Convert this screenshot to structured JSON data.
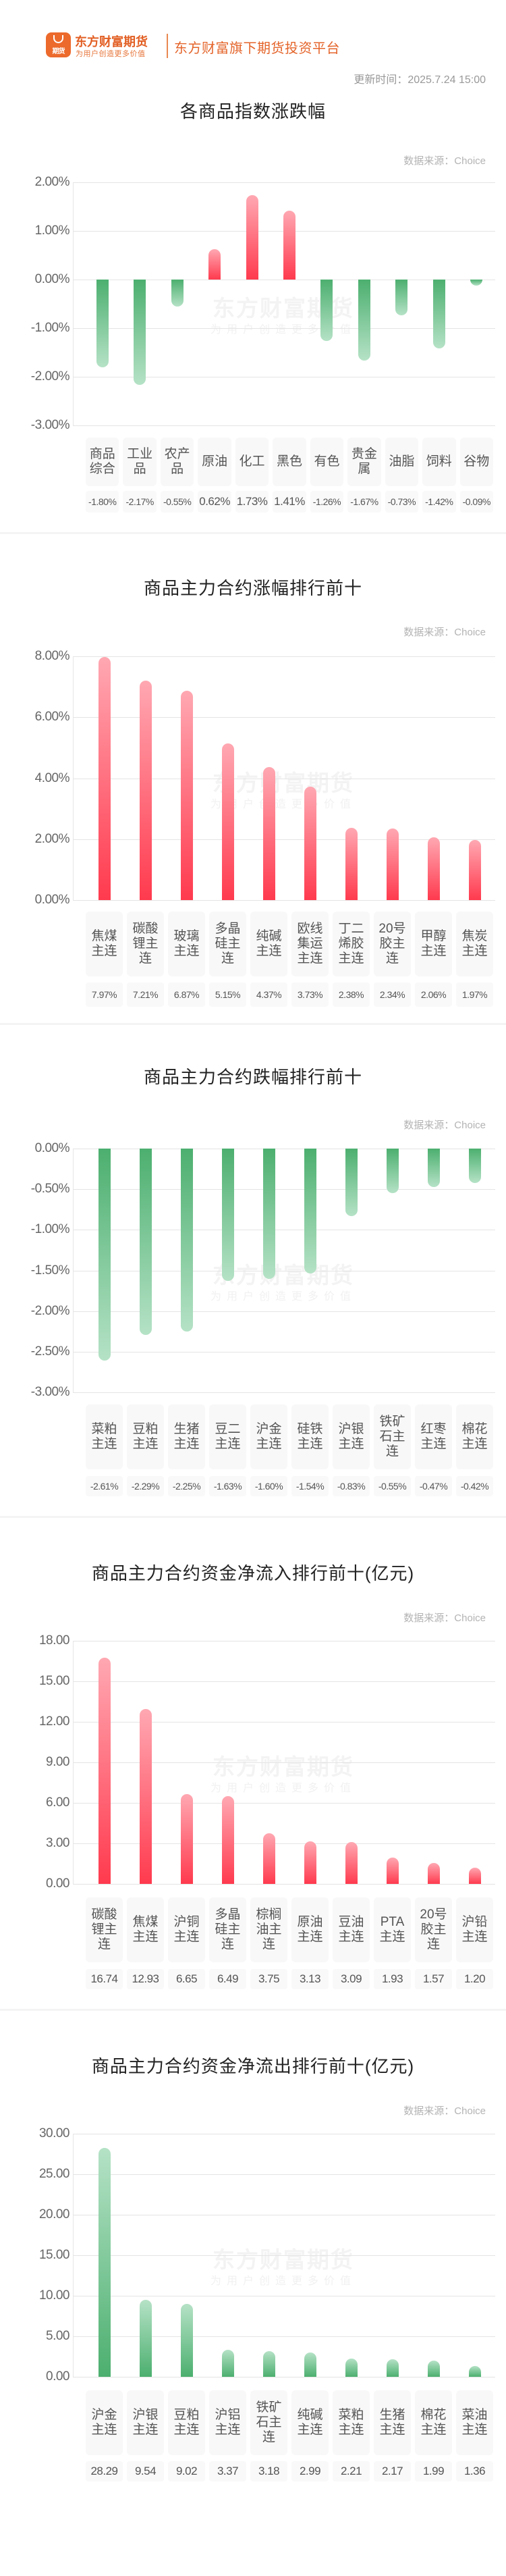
{
  "header": {
    "logo_text": "期货",
    "brand_name": "东方财富期货",
    "brand_slogan": "为用户创造更多价值",
    "tagline": "东方财富旗下期货投资平台",
    "update_time": "更新时间：2025.7.24 15:00"
  },
  "watermark": {
    "main": "东方财富期货",
    "sub": "为用户创造更多价值"
  },
  "colors": {
    "brand_orange": "#e25f24",
    "up_red": "#ff3a4e",
    "down_green": "#4caf6f"
  },
  "chart_data": [
    {
      "type": "bar",
      "title": "各商品指数涨跌幅",
      "source": "数据来源：Choice",
      "categories": [
        "商品综合",
        "工业品",
        "农产品",
        "原油",
        "化工",
        "黑色",
        "有色",
        "贵金属",
        "油脂",
        "饲料",
        "谷物"
      ],
      "values": [
        -1.8,
        -2.17,
        -0.55,
        0.62,
        1.73,
        1.41,
        -1.26,
        -1.67,
        -0.73,
        -1.42,
        -0.09
      ],
      "value_labels": [
        "-1.80%",
        "-2.17%",
        "-0.55%",
        "0.62%",
        "1.73%",
        "1.41%",
        "-1.26%",
        "-1.67%",
        "-0.73%",
        "-1.42%",
        "-0.09%"
      ],
      "y_ticks": [
        "2.00%",
        "1.00%",
        "0.00%",
        "-1.00%",
        "-2.00%",
        "-3.00%"
      ],
      "ylim": [
        -3,
        2
      ],
      "xlabel": "",
      "ylabel": "",
      "grid": true
    },
    {
      "type": "bar",
      "title": "商品主力合约涨幅排行前十",
      "source": "数据来源：Choice",
      "categories": [
        "焦煤主连",
        "碳酸锂主连",
        "玻璃主连",
        "多晶硅主连",
        "纯碱主连",
        "欧线集运主连",
        "丁二烯胶主连",
        "20号胶主连",
        "甲醇主连",
        "焦炭主连"
      ],
      "values": [
        7.97,
        7.21,
        6.87,
        5.15,
        4.37,
        3.73,
        2.38,
        2.34,
        2.06,
        1.97
      ],
      "value_labels": [
        "7.97%",
        "7.21%",
        "6.87%",
        "5.15%",
        "4.37%",
        "3.73%",
        "2.38%",
        "2.34%",
        "2.06%",
        "1.97%"
      ],
      "y_ticks": [
        "8.00%",
        "6.00%",
        "4.00%",
        "2.00%",
        "0.00%"
      ],
      "ylim": [
        0,
        8
      ],
      "xlabel": "",
      "ylabel": "",
      "grid": true
    },
    {
      "type": "bar",
      "title": "商品主力合约跌幅排行前十",
      "source": "数据来源：Choice",
      "categories": [
        "菜粕主连",
        "豆粕主连",
        "生猪主连",
        "豆二主连",
        "沪金主连",
        "硅铁主连",
        "沪银主连",
        "铁矿石主连",
        "红枣主连",
        "棉花主连"
      ],
      "values": [
        -2.61,
        -2.29,
        -2.25,
        -1.63,
        -1.6,
        -1.54,
        -0.83,
        -0.55,
        -0.47,
        -0.42
      ],
      "value_labels": [
        "-2.61%",
        "-2.29%",
        "-2.25%",
        "-1.63%",
        "-1.60%",
        "-1.54%",
        "-0.83%",
        "-0.55%",
        "-0.47%",
        "-0.42%"
      ],
      "y_ticks": [
        "0.00%",
        "-0.50%",
        "-1.00%",
        "-1.50%",
        "-2.00%",
        "-2.50%",
        "-3.00%"
      ],
      "ylim": [
        -3,
        0
      ],
      "xlabel": "",
      "ylabel": "",
      "grid": true
    },
    {
      "type": "bar",
      "title": "商品主力合约资金净流入排行前十(亿元)",
      "source": "数据来源：Choice",
      "categories": [
        "碳酸锂主连",
        "焦煤主连",
        "沪铜主连",
        "多晶硅主连",
        "棕榈油主连",
        "原油主连",
        "豆油主连",
        "PTA主连",
        "20号胶主连",
        "沪铅主连"
      ],
      "values": [
        16.74,
        12.93,
        6.65,
        6.49,
        3.75,
        3.13,
        3.09,
        1.93,
        1.57,
        1.2
      ],
      "value_labels": [
        "16.74",
        "12.93",
        "6.65",
        "6.49",
        "3.75",
        "3.13",
        "3.09",
        "1.93",
        "1.57",
        "1.20"
      ],
      "y_ticks": [
        "18.00",
        "15.00",
        "12.00",
        "9.00",
        "6.00",
        "3.00",
        "0.00"
      ],
      "ylim": [
        0,
        18
      ],
      "xlabel": "",
      "ylabel": "亿元",
      "grid": true
    },
    {
      "type": "bar",
      "title": "商品主力合约资金净流出排行前十(亿元)",
      "source": "数据来源：Choice",
      "categories": [
        "沪金主连",
        "沪银主连",
        "豆粕主连",
        "沪铝主连",
        "铁矿石主连",
        "纯碱主连",
        "菜粕主连",
        "生猪主连",
        "棉花主连",
        "菜油主连"
      ],
      "values": [
        28.29,
        9.54,
        9.02,
        3.37,
        3.18,
        2.99,
        2.21,
        2.17,
        1.99,
        1.36
      ],
      "value_labels": [
        "28.29",
        "9.54",
        "9.02",
        "3.37",
        "3.18",
        "2.99",
        "2.21",
        "2.17",
        "1.99",
        "1.36"
      ],
      "y_ticks": [
        "30.00",
        "25.00",
        "20.00",
        "15.00",
        "10.00",
        "5.00",
        "0.00"
      ],
      "ylim": [
        0,
        30
      ],
      "xlabel": "",
      "ylabel": "亿元",
      "grid": true
    }
  ]
}
